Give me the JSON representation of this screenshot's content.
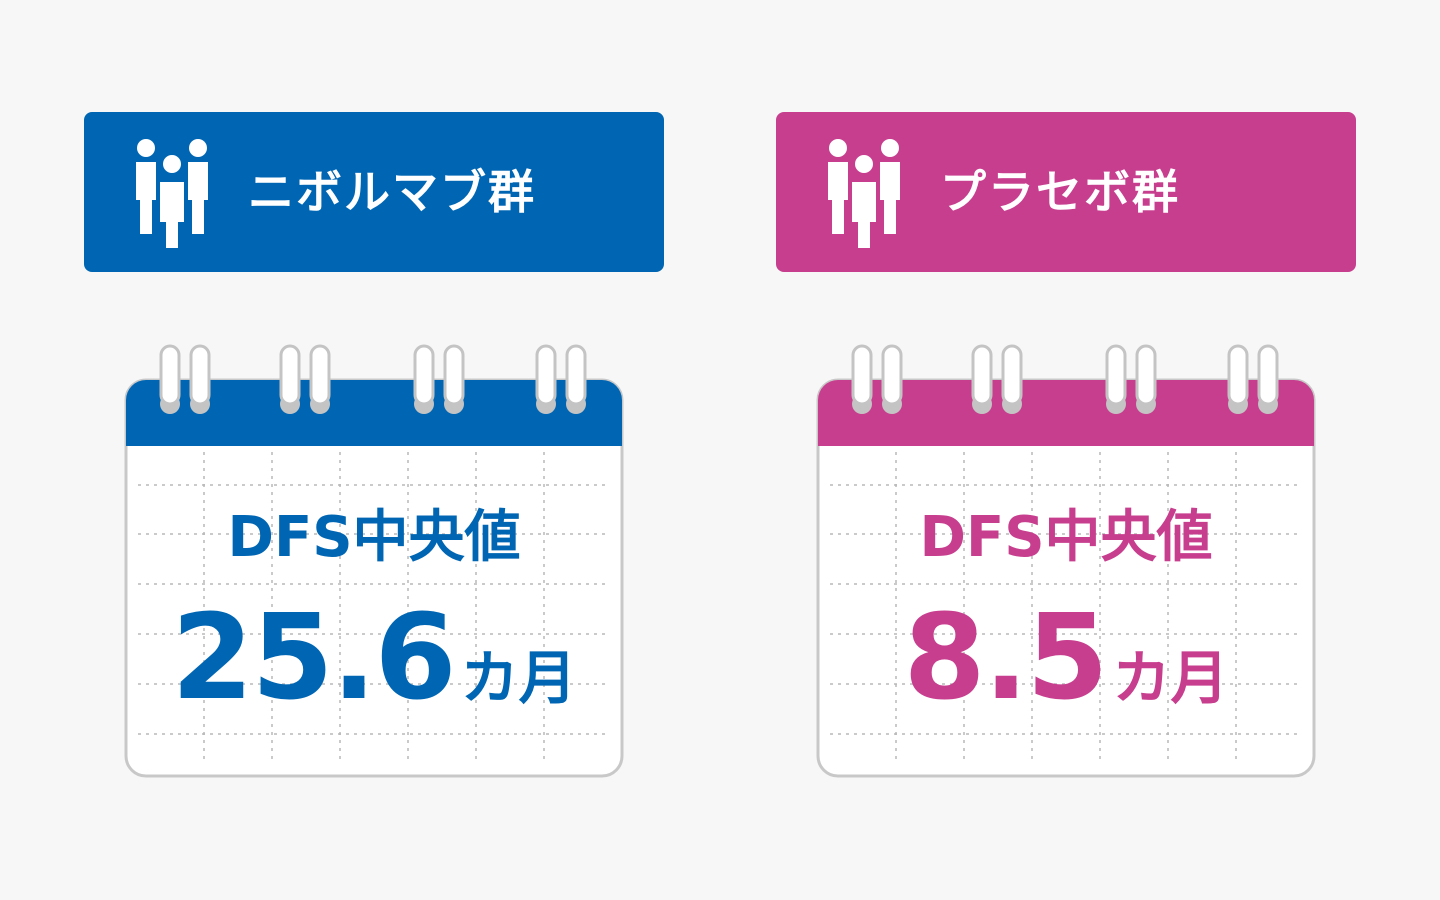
{
  "groups": [
    {
      "icon": "people-icon",
      "label": "ニボルマブ群",
      "color": "#0066b3",
      "calendar": {
        "icon": "calendar-icon",
        "title": "DFS中央値",
        "value": "25.6",
        "unit": "カ月"
      }
    },
    {
      "icon": "people-icon",
      "label": "プラセボ群",
      "color": "#c73e8e",
      "calendar": {
        "icon": "calendar-icon",
        "title": "DFS中央値",
        "value": "8.5",
        "unit": "カ月"
      }
    }
  ]
}
